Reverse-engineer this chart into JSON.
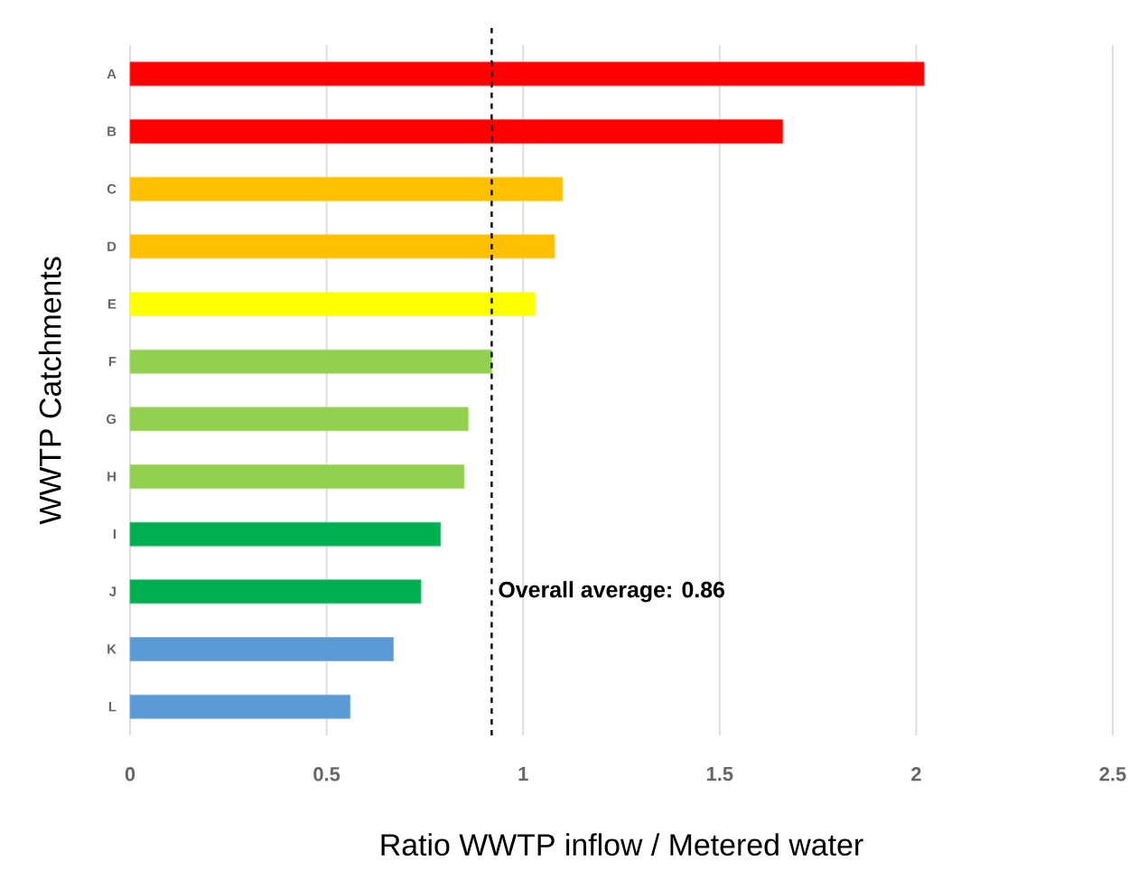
{
  "chart_data": {
    "type": "bar",
    "orientation": "horizontal",
    "xlabel": "Ratio WWTP inflow / Metered water",
    "ylabel": "WWTP Catchments",
    "categories": [
      "A",
      "B",
      "C",
      "D",
      "E",
      "F",
      "G",
      "H",
      "I",
      "J",
      "K",
      "L"
    ],
    "values": [
      2.02,
      1.66,
      1.1,
      1.08,
      1.03,
      0.92,
      0.86,
      0.85,
      0.79,
      0.74,
      0.67,
      0.56
    ],
    "colors": [
      "#ff0000",
      "#ff0000",
      "#ffc000",
      "#ffc000",
      "#ffff00",
      "#92d050",
      "#92d050",
      "#92d050",
      "#00b050",
      "#00b050",
      "#5b9bd5",
      "#5b9bd5"
    ],
    "xlim": [
      0,
      2.5
    ],
    "xticks": [
      0,
      0.5,
      1,
      1.5,
      2,
      2.5
    ],
    "grid": "x",
    "annotations": [
      "Overall average: 0.86"
    ],
    "ref_lines": [
      {
        "axis": "x",
        "value": 0.92,
        "color": "#000000",
        "line_style": "dashed"
      }
    ]
  }
}
